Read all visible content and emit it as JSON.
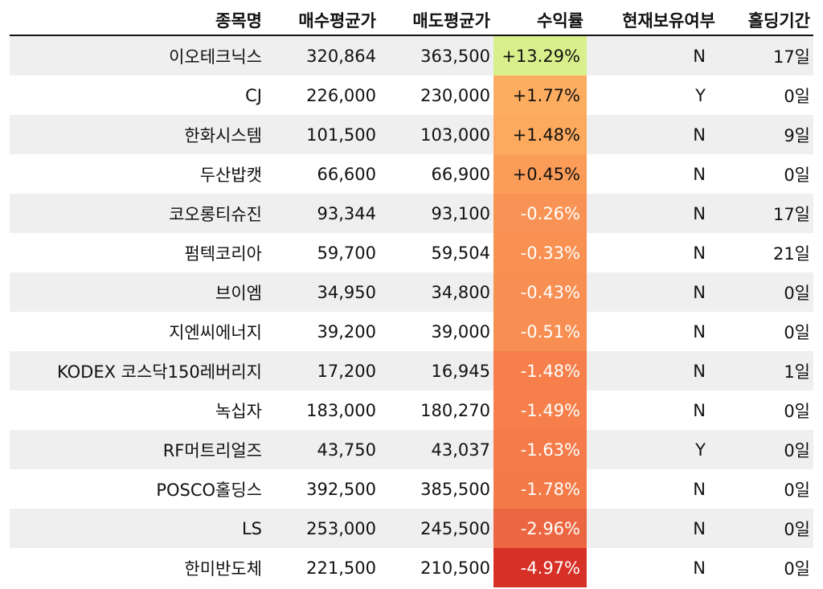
{
  "headers": [
    "종목명",
    "매수평균가",
    "매도평균가",
    "수익률",
    "현재보유여부",
    "홀딩기간"
  ],
  "rows": [
    {
      "name": "이오테크닉스",
      "buy": "320,864",
      "sell": "363,500",
      "ret": "+13.29%",
      "hold": "N",
      "period": "17일",
      "bg": "#d9ef8b",
      "fg": "#111111"
    },
    {
      "name": "CJ",
      "buy": "226,000",
      "sell": "230,000",
      "ret": "+1.77%",
      "hold": "Y",
      "period": "0일",
      "bg": "#fdad60",
      "fg": "#111111"
    },
    {
      "name": "한화시스템",
      "buy": "101,500",
      "sell": "103,000",
      "ret": "+1.48%",
      "hold": "N",
      "period": "9일",
      "bg": "#fdaa5e",
      "fg": "#111111"
    },
    {
      "name": "두산밥캣",
      "buy": "66,600",
      "sell": "66,900",
      "ret": "+0.45%",
      "hold": "N",
      "period": "0일",
      "bg": "#fb9d59",
      "fg": "#111111"
    },
    {
      "name": "코오롱티슈진",
      "buy": "93,344",
      "sell": "93,100",
      "ret": "-0.26%",
      "hold": "N",
      "period": "17일",
      "bg": "#f99355",
      "fg": "#ffffff"
    },
    {
      "name": "펌텍코리아",
      "buy": "59,700",
      "sell": "59,504",
      "ret": "-0.33%",
      "hold": "N",
      "period": "21일",
      "bg": "#f99153",
      "fg": "#ffffff"
    },
    {
      "name": "브이엠",
      "buy": "34,950",
      "sell": "34,800",
      "ret": "-0.43%",
      "hold": "N",
      "period": "0일",
      "bg": "#f88f52",
      "fg": "#ffffff"
    },
    {
      "name": "지엔씨에너지",
      "buy": "39,200",
      "sell": "39,000",
      "ret": "-0.51%",
      "hold": "N",
      "period": "0일",
      "bg": "#f88e51",
      "fg": "#ffffff"
    },
    {
      "name": "KODEX 코스닥150레버리지",
      "buy": "17,200",
      "sell": "16,945",
      "ret": "-1.48%",
      "hold": "N",
      "period": "1일",
      "bg": "#f67f4b",
      "fg": "#ffffff"
    },
    {
      "name": "녹십자",
      "buy": "183,000",
      "sell": "180,270",
      "ret": "-1.49%",
      "hold": "N",
      "period": "0일",
      "bg": "#f67f4b",
      "fg": "#ffffff"
    },
    {
      "name": "RF머트리얼즈",
      "buy": "43,750",
      "sell": "43,037",
      "ret": "-1.63%",
      "hold": "Y",
      "period": "0일",
      "bg": "#f57c4a",
      "fg": "#ffffff"
    },
    {
      "name": "POSCO홀딩스",
      "buy": "392,500",
      "sell": "385,500",
      "ret": "-1.78%",
      "hold": "N",
      "period": "0일",
      "bg": "#f47a48",
      "fg": "#ffffff"
    },
    {
      "name": "LS",
      "buy": "253,000",
      "sell": "245,500",
      "ret": "-2.96%",
      "hold": "N",
      "period": "0일",
      "bg": "#ec6641",
      "fg": "#ffffff"
    },
    {
      "name": "한미반도체",
      "buy": "221,500",
      "sell": "210,500",
      "ret": "-4.97%",
      "hold": "N",
      "period": "0일",
      "bg": "#d73027",
      "fg": "#ffffff"
    }
  ]
}
